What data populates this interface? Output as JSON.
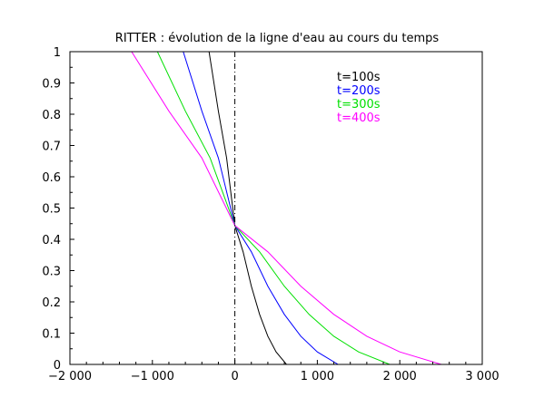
{
  "chart_data": {
    "type": "line",
    "title": "RITTER : évolution de la ligne d'eau au cours du temps",
    "xlabel": "",
    "ylabel": "",
    "xlim": [
      -2000,
      3000
    ],
    "ylim": [
      0,
      1
    ],
    "x_ticks": [
      -2000,
      -1000,
      0,
      1000,
      2000,
      3000
    ],
    "x_tick_labels": [
      "−2 000",
      "−1 000",
      "0",
      "1 000",
      "2 000",
      "3 000"
    ],
    "y_ticks": [
      0,
      0.1,
      0.2,
      0.3,
      0.4,
      0.5,
      0.6,
      0.7,
      0.8,
      0.9,
      1
    ],
    "y_tick_labels": [
      "0",
      "0.1",
      "0.2",
      "0.3",
      "0.4",
      "0.5",
      "0.6",
      "0.7",
      "0.8",
      "0.9",
      "1"
    ],
    "grid": false,
    "legend_position": "top-right",
    "vertical_line": {
      "x": 0,
      "style": "dash-dot",
      "color": "#000000"
    },
    "series": [
      {
        "name": "t=100s",
        "color": "#000000",
        "x": [
          -313,
          -200,
          -100,
          0,
          100,
          200,
          300,
          400,
          500,
          626
        ],
        "y": [
          1.0,
          0.81,
          0.66,
          0.444,
          0.36,
          0.25,
          0.16,
          0.09,
          0.04,
          0.0
        ]
      },
      {
        "name": "t=200s",
        "color": "#0000ff",
        "x": [
          -626,
          -400,
          -200,
          0,
          200,
          400,
          600,
          800,
          1000,
          1252
        ],
        "y": [
          1.0,
          0.81,
          0.66,
          0.444,
          0.36,
          0.25,
          0.16,
          0.09,
          0.04,
          0.0
        ]
      },
      {
        "name": "t=300s",
        "color": "#00e000",
        "x": [
          -939,
          -600,
          -300,
          0,
          300,
          600,
          900,
          1200,
          1500,
          1878
        ],
        "y": [
          1.0,
          0.81,
          0.66,
          0.444,
          0.36,
          0.25,
          0.16,
          0.09,
          0.04,
          0.0
        ]
      },
      {
        "name": "t=400s",
        "color": "#ff00ff",
        "x": [
          -1252,
          -800,
          -400,
          0,
          400,
          800,
          1200,
          1600,
          2000,
          2504
        ],
        "y": [
          1.0,
          0.81,
          0.66,
          0.444,
          0.36,
          0.25,
          0.16,
          0.09,
          0.04,
          0.0
        ]
      }
    ]
  }
}
